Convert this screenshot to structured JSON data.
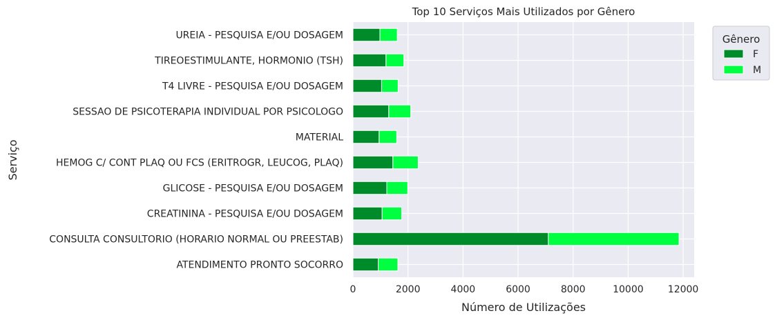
{
  "chart_data": {
    "type": "bar",
    "orientation": "horizontal",
    "stacked": true,
    "title": "Top 10 Serviços Mais Utilizados por Gênero",
    "xlabel": "Número de Utilizações",
    "ylabel": "Serviço",
    "xlim": [
      0,
      12400
    ],
    "xticks": [
      0,
      2000,
      4000,
      6000,
      8000,
      10000,
      12000
    ],
    "grid": true,
    "legend": {
      "title": "Gênero",
      "position": "outside-top-right"
    },
    "categories": [
      "ATENDIMENTO PRONTO SOCORRO",
      "CONSULTA CONSULTORIO (HORARIO NORMAL OU PREESTAB)",
      "CREATININA - PESQUISA E/OU DOSAGEM",
      "GLICOSE - PESQUISA E/OU DOSAGEM",
      "HEMOG C/ CONT PLAQ OU FCS (ERITROGR, LEUCOG, PLAQ)",
      "MATERIAL",
      "SESSAO DE PSICOTERAPIA INDIVIDUAL POR PSICOLOGO",
      "T4 LIVRE - PESQUISA E/OU DOSAGEM",
      "TIREOESTIMULANTE, HORMONIO (TSH)",
      "UREIA - PESQUISA E/OU DOSAGEM"
    ],
    "series": [
      {
        "name": "F",
        "color": "#008b2b",
        "values": [
          920,
          7100,
          1060,
          1230,
          1450,
          950,
          1300,
          1040,
          1200,
          980
        ]
      },
      {
        "name": "M",
        "color": "#00ff40",
        "values": [
          710,
          4750,
          710,
          760,
          920,
          640,
          800,
          600,
          650,
          630
        ]
      }
    ],
    "colors": {
      "plot_bg": "#eaeaf2",
      "grid": "#ffffff"
    }
  }
}
